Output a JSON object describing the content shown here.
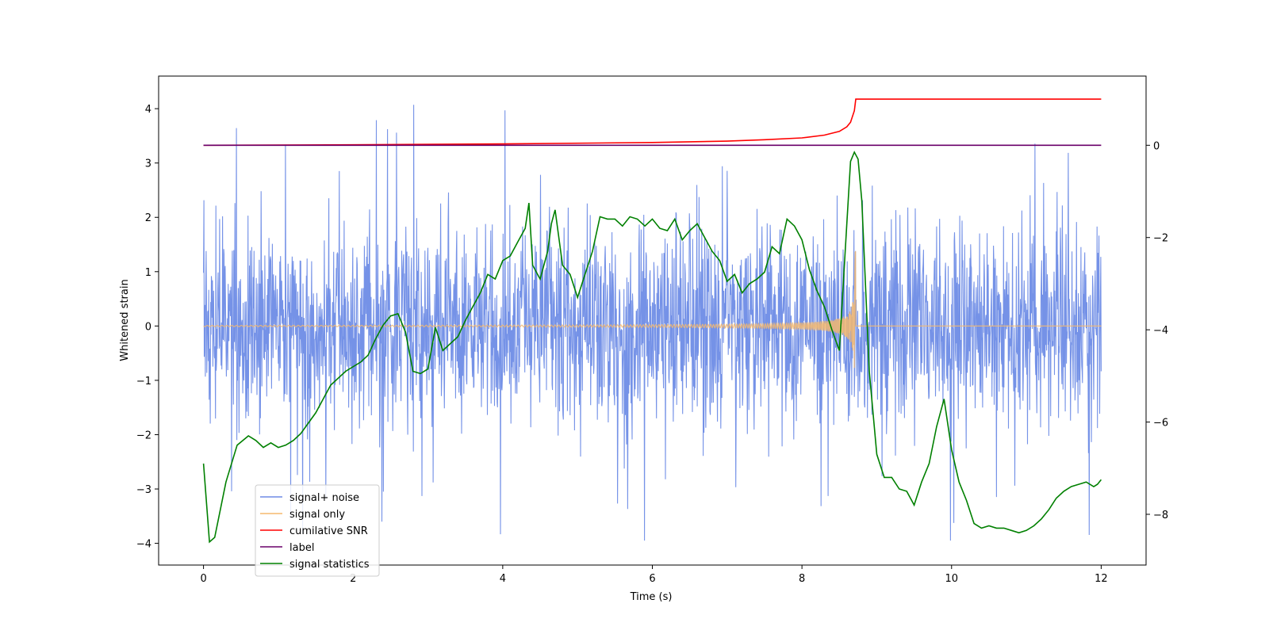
{
  "chart_data": {
    "type": "line",
    "title": "",
    "xlabel": "Time (s)",
    "ylabel": "Whitened strain",
    "ylabel_right": "",
    "xlim": [
      -0.6,
      12.6
    ],
    "ylim": [
      -4.4,
      4.6
    ],
    "ylim_right": [
      -9.1,
      1.5
    ],
    "xticks": [
      0,
      2,
      4,
      6,
      8,
      10,
      12
    ],
    "yticks": [
      -4,
      -3,
      -2,
      -1,
      0,
      1,
      2,
      3,
      4
    ],
    "yticks_right": [
      -8,
      -6,
      -4,
      -2,
      0
    ],
    "legend_position": "lower-left",
    "series": [
      {
        "name": "signal+ noise",
        "axis": "left",
        "color": "#6e8ce6",
        "description": "whitened noise, roughly within -2 to +2 with spikes up to about 4.2 and down to about -3.9",
        "x_range": [
          0,
          12
        ],
        "approx_envelope": [
          -2.0,
          2.0
        ]
      },
      {
        "name": "signal only",
        "axis": "left",
        "color": "#f5b96e",
        "description": "chirp near zero growing to peak near t = 8.72",
        "x_range": [
          0,
          12
        ],
        "peak": {
          "x": 8.72,
          "y": 1.5
        }
      },
      {
        "name": "cumilative SNR",
        "axis": "right",
        "color": "#ff0000",
        "x": [
          0,
          2,
          4,
          6,
          7,
          7.5,
          8,
          8.3,
          8.5,
          8.6,
          8.65,
          8.7,
          8.72,
          12
        ],
        "y": [
          0,
          0.01,
          0.03,
          0.06,
          0.09,
          0.12,
          0.16,
          0.22,
          0.3,
          0.4,
          0.5,
          0.75,
          1.0,
          1.0
        ]
      },
      {
        "name": "label",
        "axis": "right",
        "color": "#6a006a",
        "x": [
          0,
          12
        ],
        "y": [
          0,
          0
        ]
      },
      {
        "name": "signal statistics",
        "axis": "right",
        "color": "#008000",
        "x": [
          0,
          0.08,
          0.15,
          0.3,
          0.45,
          0.6,
          0.7,
          0.8,
          0.9,
          1.0,
          1.1,
          1.2,
          1.3,
          1.5,
          1.7,
          1.9,
          2.1,
          2.2,
          2.3,
          2.4,
          2.5,
          2.6,
          2.7,
          2.8,
          2.9,
          3.0,
          3.1,
          3.2,
          3.3,
          3.4,
          3.5,
          3.6,
          3.7,
          3.8,
          3.9,
          4.0,
          4.1,
          4.2,
          4.3,
          4.35,
          4.4,
          4.5,
          4.6,
          4.65,
          4.7,
          4.8,
          4.9,
          5.0,
          5.1,
          5.2,
          5.3,
          5.4,
          5.5,
          5.6,
          5.7,
          5.8,
          5.9,
          6.0,
          6.1,
          6.2,
          6.3,
          6.4,
          6.5,
          6.6,
          6.7,
          6.8,
          6.9,
          7.0,
          7.1,
          7.2,
          7.3,
          7.4,
          7.5,
          7.6,
          7.7,
          7.8,
          7.9,
          8.0,
          8.1,
          8.2,
          8.3,
          8.4,
          8.5,
          8.6,
          8.65,
          8.7,
          8.75,
          8.8,
          8.9,
          9.0,
          9.1,
          9.2,
          9.3,
          9.4,
          9.5,
          9.6,
          9.7,
          9.8,
          9.9,
          10.0,
          10.1,
          10.2,
          10.3,
          10.4,
          10.5,
          10.6,
          10.7,
          10.8,
          10.9,
          11.0,
          11.1,
          11.2,
          11.3,
          11.4,
          11.5,
          11.6,
          11.7,
          11.8,
          11.9,
          11.95,
          12.0
        ],
        "y": [
          -6.9,
          -8.6,
          -8.5,
          -7.3,
          -6.5,
          -6.3,
          -6.4,
          -6.55,
          -6.45,
          -6.55,
          -6.5,
          -6.4,
          -6.25,
          -5.8,
          -5.2,
          -4.9,
          -4.7,
          -4.55,
          -4.2,
          -3.9,
          -3.7,
          -3.65,
          -4.05,
          -4.9,
          -4.95,
          -4.85,
          -3.95,
          -4.45,
          -4.3,
          -4.15,
          -3.8,
          -3.5,
          -3.2,
          -2.8,
          -2.9,
          -2.5,
          -2.4,
          -2.1,
          -1.8,
          -1.25,
          -2.6,
          -2.9,
          -2.3,
          -1.7,
          -1.4,
          -2.6,
          -2.8,
          -3.3,
          -2.8,
          -2.3,
          -1.55,
          -1.6,
          -1.6,
          -1.75,
          -1.55,
          -1.6,
          -1.75,
          -1.6,
          -1.8,
          -1.85,
          -1.6,
          -2.05,
          -1.85,
          -1.7,
          -2.0,
          -2.3,
          -2.5,
          -2.95,
          -2.8,
          -3.2,
          -3.0,
          -2.9,
          -2.75,
          -2.2,
          -2.35,
          -1.6,
          -1.75,
          -2.05,
          -2.7,
          -3.15,
          -3.5,
          -4.0,
          -4.45,
          -1.7,
          -0.35,
          -0.15,
          -0.3,
          -1.2,
          -4.9,
          -6.7,
          -7.2,
          -7.2,
          -7.45,
          -7.5,
          -7.8,
          -7.3,
          -6.9,
          -6.1,
          -5.5,
          -6.6,
          -7.3,
          -7.7,
          -8.2,
          -8.3,
          -8.25,
          -8.3,
          -8.3,
          -8.35,
          -8.4,
          -8.35,
          -8.25,
          -8.1,
          -7.9,
          -7.65,
          -7.5,
          -7.4,
          -7.35,
          -7.3,
          -7.4,
          -7.35,
          -7.25
        ]
      }
    ]
  }
}
